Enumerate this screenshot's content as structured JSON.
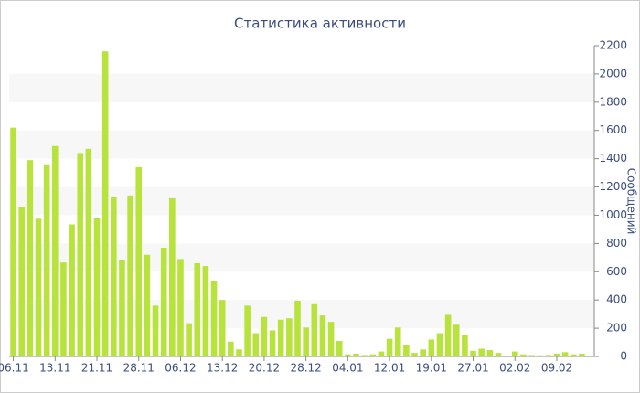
{
  "chart_data": {
    "type": "bar",
    "title": "Статистика активности",
    "y_label": "Сообщений",
    "categories": [
      "06.11",
      null,
      null,
      null,
      null,
      "13.11",
      null,
      null,
      null,
      null,
      "21.11",
      null,
      null,
      null,
      null,
      "28.11",
      null,
      null,
      null,
      null,
      "06.12",
      null,
      null,
      null,
      null,
      "13.12",
      null,
      null,
      null,
      null,
      "20.12",
      null,
      null,
      null,
      null,
      "28.12",
      null,
      null,
      null,
      null,
      "04.01",
      null,
      null,
      null,
      null,
      "12.01",
      null,
      null,
      null,
      null,
      "19.01",
      null,
      null,
      null,
      null,
      "27.01",
      null,
      null,
      null,
      null,
      "02.02",
      null,
      null,
      null,
      null,
      "09.02",
      null,
      null,
      null
    ],
    "values": [
      1620,
      1060,
      1390,
      975,
      1360,
      1490,
      665,
      935,
      1440,
      1470,
      980,
      2160,
      1130,
      680,
      1140,
      1340,
      720,
      360,
      770,
      1120,
      690,
      235,
      660,
      640,
      535,
      400,
      105,
      50,
      360,
      165,
      280,
      185,
      260,
      270,
      395,
      205,
      370,
      290,
      245,
      110,
      15,
      20,
      10,
      15,
      35,
      125,
      205,
      80,
      25,
      50,
      120,
      165,
      295,
      225,
      155,
      40,
      55,
      45,
      25,
      5,
      35,
      15,
      10,
      8,
      10,
      20,
      30,
      15,
      20
    ],
    "color": "#b8e23c",
    "ylim": [
      0,
      2200
    ],
    "yticks": [
      0,
      200,
      400,
      600,
      800,
      1000,
      1200,
      1400,
      1600,
      1800,
      2000,
      2200
    ],
    "grid": true
  }
}
